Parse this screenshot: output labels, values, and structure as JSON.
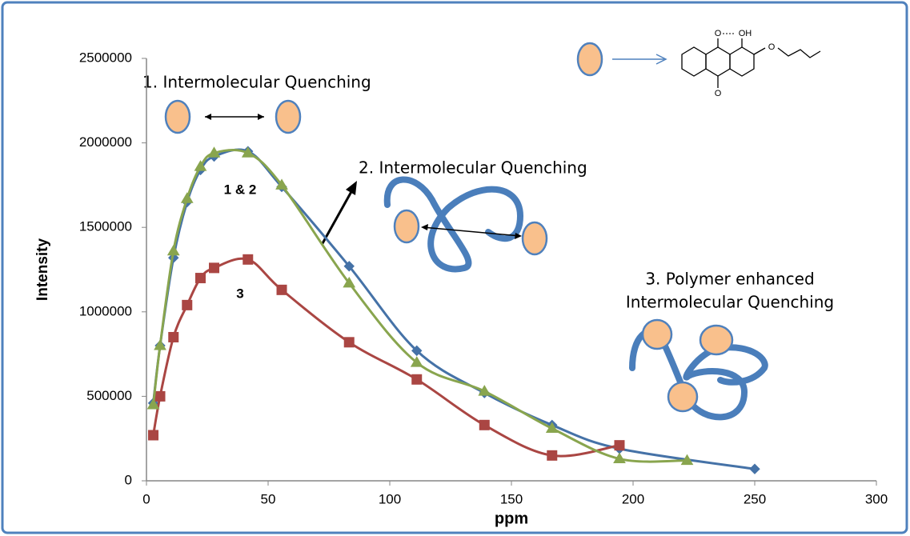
{
  "chart_data": {
    "type": "line",
    "xlabel": "ppm",
    "ylabel": "Intensity",
    "xlim": [
      0,
      300
    ],
    "xticks": [
      0,
      50,
      100,
      150,
      200,
      250,
      300
    ],
    "ylim": [
      0,
      2500000
    ],
    "yticks": [
      0,
      500000,
      1000000,
      1500000,
      2000000,
      2500000
    ],
    "annotations": [
      "1. Intermolecular Quenching",
      "2. Intermolecular Quenching",
      "3. Polymer enhanced",
      "Intermolecular Quenching",
      "1 & 2",
      "3"
    ],
    "molecule_labels": [
      "O",
      "OH",
      "O",
      "O"
    ],
    "series": [
      {
        "color": "#4572a7",
        "marker": "diamond",
        "x": [
          2.8,
          5.6,
          11.1,
          16.7,
          22.2,
          27.8,
          41.7,
          55.6,
          83.3,
          111.1,
          138.9,
          166.7,
          194.4,
          250
        ],
        "values": [
          460000,
          800000,
          1320000,
          1650000,
          1840000,
          1920000,
          1950000,
          1740000,
          1270000,
          770000,
          520000,
          330000,
          190000,
          70000
        ]
      },
      {
        "color": "#aa4643",
        "marker": "square",
        "x": [
          2.8,
          5.6,
          11.1,
          16.7,
          22.2,
          27.8,
          41.7,
          55.6,
          83.3,
          111.1,
          138.9,
          166.7,
          194.4
        ],
        "values": [
          270000,
          500000,
          850000,
          1040000,
          1200000,
          1260000,
          1310000,
          1130000,
          820000,
          600000,
          330000,
          150000,
          210000
        ]
      },
      {
        "color": "#89a54e",
        "marker": "triangle",
        "x": [
          2.8,
          5.6,
          11.1,
          16.7,
          22.2,
          27.8,
          41.7,
          55.6,
          83.3,
          111.1,
          138.9,
          166.7,
          194.4,
          222.2
        ],
        "values": [
          450000,
          800000,
          1360000,
          1670000,
          1860000,
          1940000,
          1940000,
          1750000,
          1170000,
          700000,
          530000,
          310000,
          130000,
          120000
        ]
      }
    ]
  }
}
